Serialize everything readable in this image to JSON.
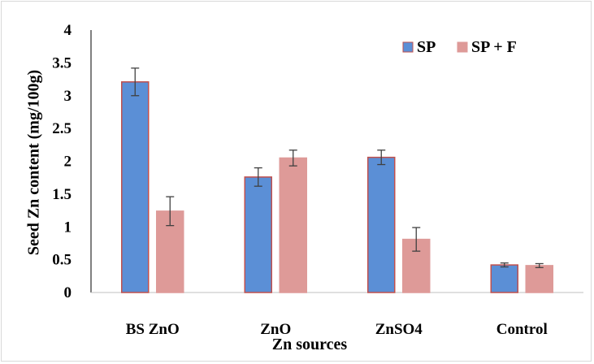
{
  "chart_data": {
    "type": "bar",
    "categories": [
      "BS ZnO",
      "ZnO",
      "ZnSO4",
      "Control"
    ],
    "series": [
      {
        "name": "SP",
        "values": [
          3.21,
          1.76,
          2.06,
          0.42
        ],
        "errors": [
          0.21,
          0.14,
          0.11,
          0.03
        ],
        "fill": "#5b8fd6",
        "stroke": "#c0504d"
      },
      {
        "name": "SP + F",
        "values": [
          1.24,
          2.05,
          0.81,
          0.41
        ],
        "errors": [
          0.22,
          0.12,
          0.18,
          0.03
        ],
        "fill": "#de9a98",
        "stroke": "#de9a98"
      }
    ],
    "ylim": [
      0,
      4
    ],
    "yticks": [
      "0",
      "0.5",
      "1",
      "1.5",
      "2",
      "2.5",
      "3",
      "3.5",
      "4"
    ],
    "ylabel": "Seed Zn content (mg/100g)",
    "xlabel": "Zn sources",
    "legend": "top-right",
    "grid": false
  }
}
